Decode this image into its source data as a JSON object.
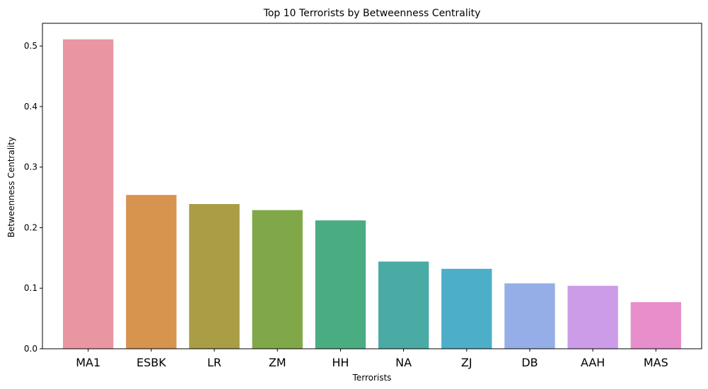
{
  "chart_data": {
    "type": "bar",
    "title": "Top 10 Terrorists by Betweenness Centrality",
    "xlabel": "Terrorists",
    "ylabel": "Betweenness Centrality",
    "categories": [
      "MA1",
      "ESBK",
      "LR",
      "ZM",
      "HH",
      "NA",
      "ZJ",
      "DB",
      "AAH",
      "MAS"
    ],
    "values": [
      0.511,
      0.254,
      0.239,
      0.229,
      0.212,
      0.144,
      0.132,
      0.108,
      0.104,
      0.077
    ],
    "colors": [
      "#ea96a2",
      "#d6944f",
      "#a99e45",
      "#80a849",
      "#4aad82",
      "#4aaaa4",
      "#4caec8",
      "#95aee8",
      "#cd9ce8",
      "#e88fcb"
    ],
    "ylim": [
      0,
      0.5375
    ],
    "yticks": [
      0.0,
      0.1,
      0.2,
      0.3,
      0.4,
      0.5
    ],
    "ytick_labels": [
      "0.0",
      "0.1",
      "0.2",
      "0.3",
      "0.4",
      "0.5"
    ],
    "grid": false,
    "legend": "none"
  }
}
